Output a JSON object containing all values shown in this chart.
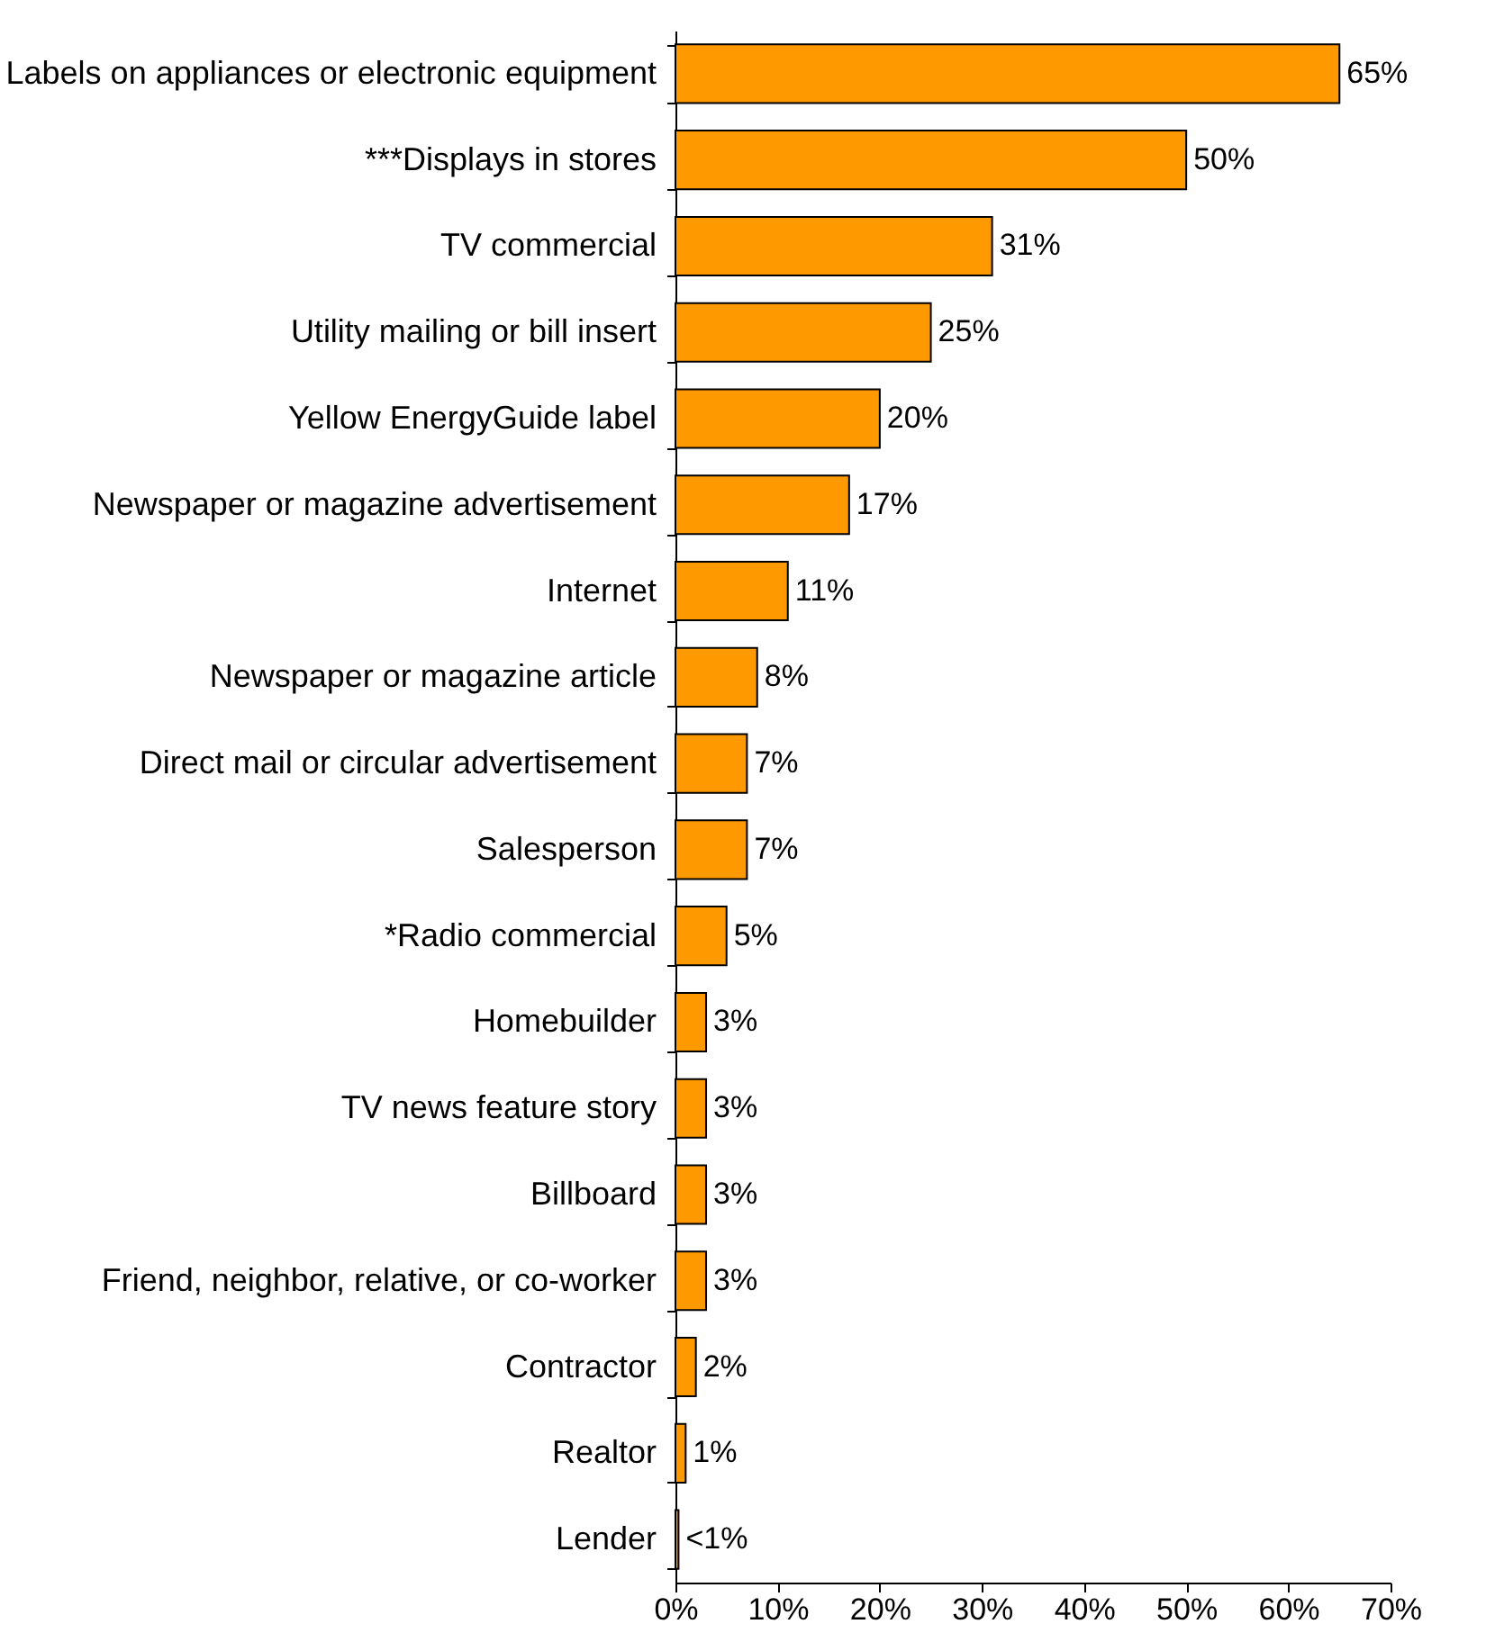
{
  "chart_data": {
    "type": "bar",
    "orientation": "horizontal",
    "categories": [
      "Labels on appliances or electronic equipment",
      "***Displays in stores",
      "TV commercial",
      "Utility mailing or bill insert",
      "Yellow EnergyGuide label",
      "Newspaper or magazine advertisement",
      "Internet",
      "Newspaper or magazine article",
      "Direct mail or circular advertisement",
      "Salesperson",
      "*Radio commercial",
      "Homebuilder",
      "TV news feature story",
      "Billboard",
      "Friend, neighbor, relative, or co-worker",
      "Contractor",
      "Realtor",
      "Lender"
    ],
    "values": [
      65,
      50,
      31,
      25,
      20,
      17,
      11,
      8,
      7,
      7,
      5,
      3,
      3,
      3,
      3,
      2,
      1,
      0.3
    ],
    "value_labels": [
      "65%",
      "50%",
      "31%",
      "25%",
      "20%",
      "17%",
      "11%",
      "8%",
      "7%",
      "7%",
      "5%",
      "3%",
      "3%",
      "3%",
      "3%",
      "2%",
      "1%",
      "<1%"
    ],
    "color": "#ff9900",
    "xlim": [
      0,
      70
    ],
    "xticks": [
      {
        "value": 0,
        "label": "0%"
      },
      {
        "value": 10,
        "label": "10%"
      },
      {
        "value": 20,
        "label": "20%"
      },
      {
        "value": 30,
        "label": "30%"
      },
      {
        "value": 40,
        "label": "40%"
      },
      {
        "value": 50,
        "label": "50%"
      },
      {
        "value": 60,
        "label": "60%"
      },
      {
        "value": 70,
        "label": "70%"
      }
    ],
    "grid": false
  }
}
